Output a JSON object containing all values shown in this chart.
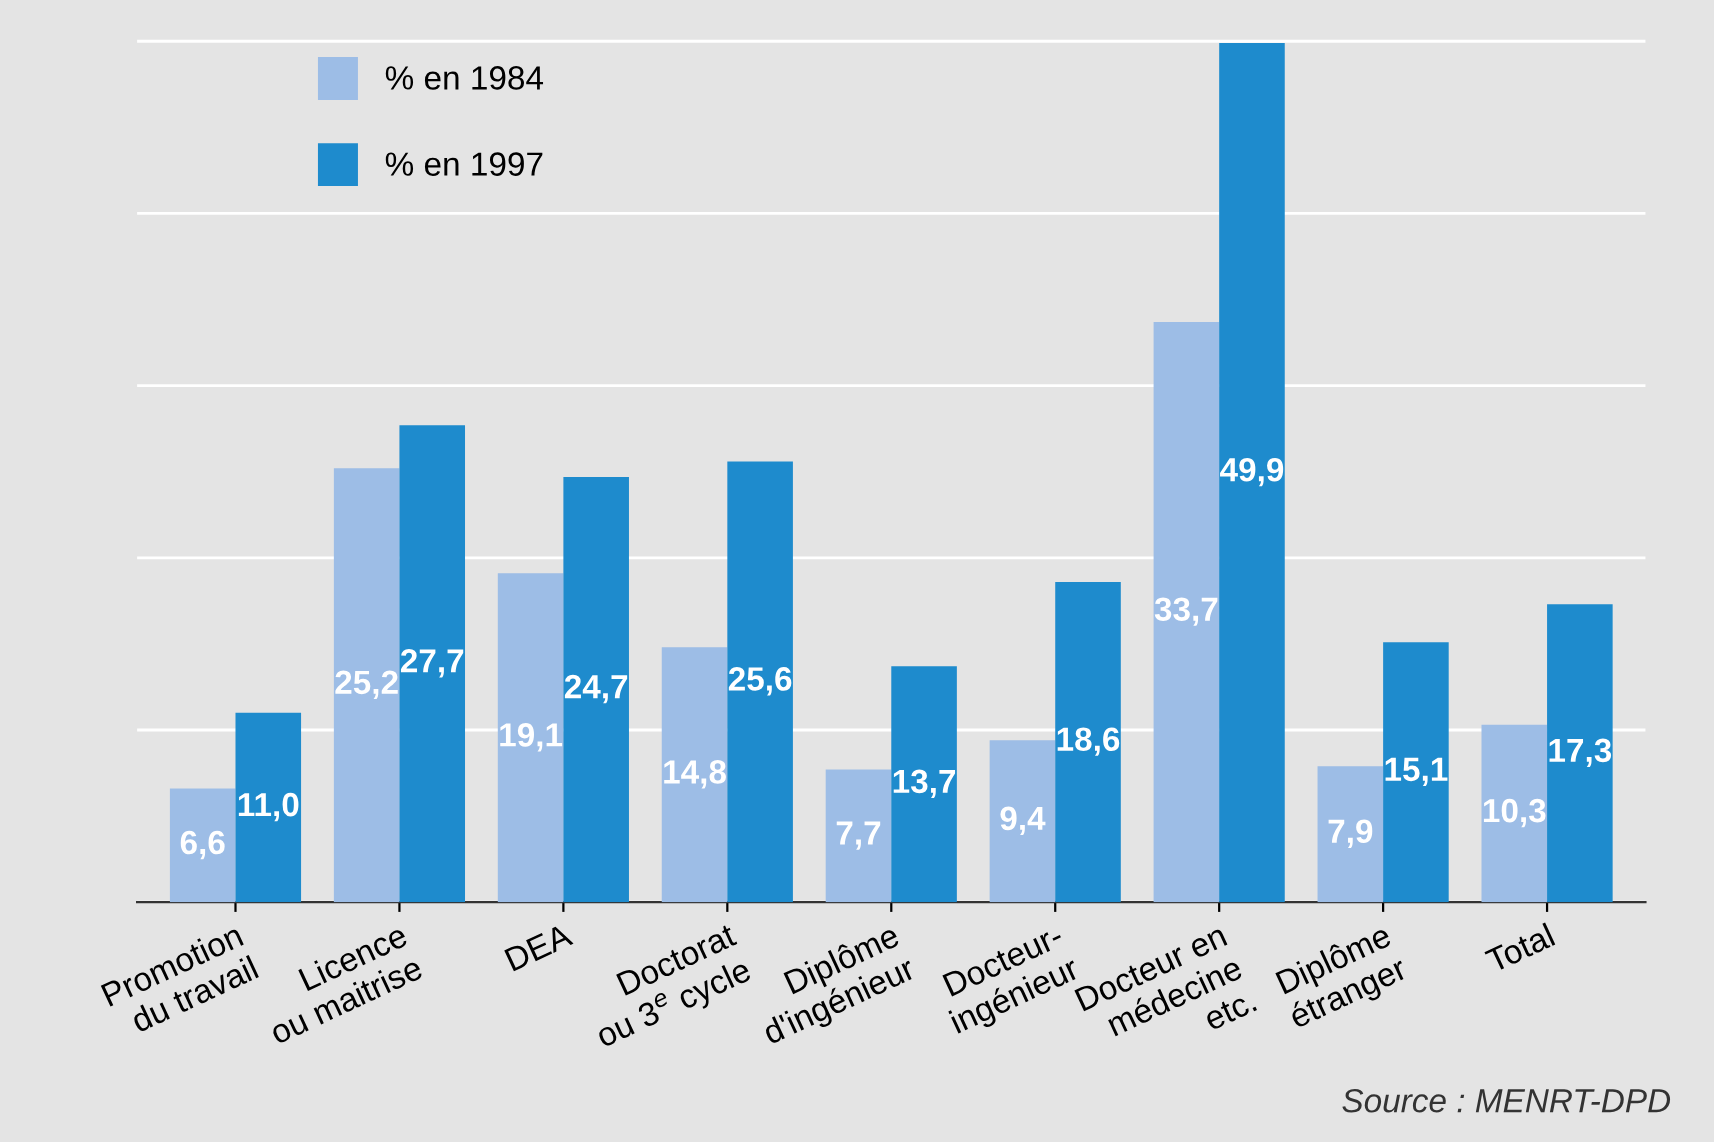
{
  "chart_data": {
    "type": "bar",
    "categories": [
      "Promotion\ndu travail",
      "Licence\nou maitrise",
      "DEA",
      "Doctorat\nou 3$^{e}$ cycle",
      "Diplôme\nd'ingénieur",
      "Docteur-\ningénieur",
      "Docteur en\nmédecine\netc.",
      "Diplôme\nétranger",
      "Total"
    ],
    "series": [
      {
        "name": "% en 1984",
        "color": "#9dbde6",
        "values": [
          6.6,
          25.2,
          19.1,
          14.8,
          7.7,
          9.4,
          33.7,
          7.9,
          10.3
        ],
        "value_labels": [
          "6,6",
          "25,2",
          "19,1",
          "14,8",
          "7,7",
          "9,4",
          "33,7",
          "7,9",
          "10,3"
        ]
      },
      {
        "name": "% en 1997",
        "color": "#1e8bcd",
        "values": [
          11.0,
          27.7,
          24.7,
          25.6,
          13.7,
          18.6,
          49.9,
          15.1,
          17.3
        ],
        "value_labels": [
          "11,0",
          "27,7",
          "24,7",
          "25,6",
          "13,7",
          "18,6",
          "49,9",
          "15,1",
          "17,3"
        ]
      }
    ],
    "grid": "y",
    "legend": "top left",
    "annotations": [
      "Source : MENRT-DPD"
    ]
  }
}
